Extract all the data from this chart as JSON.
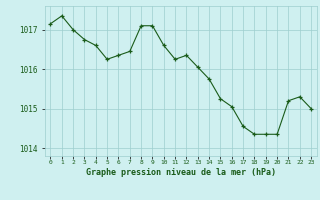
{
  "x": [
    0,
    1,
    2,
    3,
    4,
    5,
    6,
    7,
    8,
    9,
    10,
    11,
    12,
    13,
    14,
    15,
    16,
    17,
    18,
    19,
    20,
    21,
    22,
    23
  ],
  "y": [
    1017.15,
    1017.35,
    1017.0,
    1016.75,
    1016.6,
    1016.25,
    1016.35,
    1016.45,
    1017.1,
    1017.1,
    1016.6,
    1016.25,
    1016.35,
    1016.05,
    1015.75,
    1015.25,
    1015.05,
    1014.55,
    1014.35,
    1014.35,
    1014.35,
    1015.2,
    1015.3,
    1015.0
  ],
  "line_color": "#1a5c1a",
  "marker_color": "#1a5c1a",
  "bg_color": "#cff0f0",
  "grid_color": "#9ecece",
  "xlabel": "Graphe pression niveau de la mer (hPa)",
  "xlabel_color": "#1a5c1a",
  "tick_label_color": "#1a5c1a",
  "ylim": [
    1013.8,
    1017.6
  ],
  "yticks": [
    1014,
    1015,
    1016,
    1017
  ],
  "xtick_labels": [
    "0",
    "1",
    "2",
    "3",
    "4",
    "5",
    "6",
    "7",
    "8",
    "9",
    "10",
    "11",
    "12",
    "13",
    "14",
    "15",
    "16",
    "17",
    "18",
    "19",
    "20",
    "21",
    "22",
    "23"
  ]
}
